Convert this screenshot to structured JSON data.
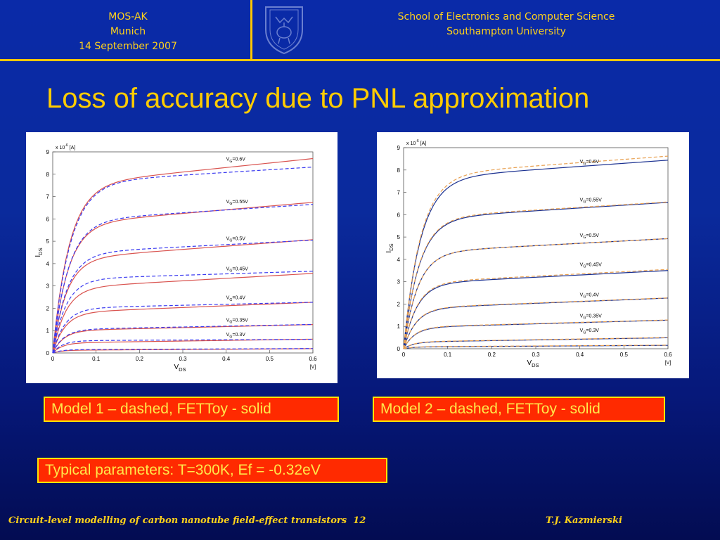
{
  "header": {
    "left": [
      "MOS-AK",
      "Munich",
      "14 September 2007"
    ],
    "right": [
      "School of Electronics and Computer Science",
      "Southampton University"
    ]
  },
  "title": "Loss of accuracy due to PNL approximation",
  "captions": {
    "model1": "Model 1 – dashed,   FETToy - solid",
    "model2": "Model 2 – dashed,   FETToy - solid",
    "params": "Typical parameters: T=300K, Ef = -0.32eV"
  },
  "footer": {
    "left": "Circuit-level modelling of carbon nanotube field-effect transistors",
    "page": "12",
    "right": "T.J. Kazmierski"
  },
  "colors": {
    "background": "#0a2aa8",
    "accent": "#ffcc00",
    "caption_bg": "#ff2a00",
    "fettoy_solid_model1": "#d9534f",
    "model1_dashed": "#3a3af0",
    "fettoy_solid_model2": "#1a3090",
    "model2_dashed": "#e8a050"
  },
  "chart_data": [
    {
      "type": "line",
      "xlabel": "V",
      "xlabel_sub": "DS",
      "xunit": "[V]",
      "ylabel": "I",
      "ylabel_sub": "DS",
      "yscale_label": "x 10",
      "yscale_exp": "-6",
      "yunit": "[A]",
      "xlim": [
        0,
        0.6
      ],
      "ylim": [
        0,
        9
      ],
      "xticks": [
        "0",
        "0.1",
        "0.2",
        "0.3",
        "0.4",
        "0.5",
        "0.6"
      ],
      "yticks": [
        "0",
        "1",
        "2",
        "3",
        "4",
        "5",
        "6",
        "7",
        "8",
        "9"
      ],
      "curve_labels": [
        {
          "text": "V",
          "sub": "G",
          "rest": "=0.6V",
          "x": 0.4,
          "y": 8.6
        },
        {
          "text": "V",
          "sub": "G",
          "rest": "=0.55V",
          "x": 0.4,
          "y": 6.7
        },
        {
          "text": "V",
          "sub": "G",
          "rest": "=0.5V",
          "x": 0.4,
          "y": 5.05
        },
        {
          "text": "V",
          "sub": "G",
          "rest": "=0.45V",
          "x": 0.4,
          "y": 3.7
        },
        {
          "text": "V",
          "sub": "G",
          "rest": "=0.4V",
          "x": 0.4,
          "y": 2.4
        },
        {
          "text": "V",
          "sub": "G",
          "rest": "=0.35V",
          "x": 0.4,
          "y": 1.4
        },
        {
          "text": "V",
          "sub": "G",
          "rest": "=0.3V",
          "x": 0.4,
          "y": 0.75
        }
      ],
      "series": [
        {
          "name": "FETToy - solid",
          "style": "solid",
          "color": "#d9534f",
          "curves": [
            {
              "isat": 7.5,
              "slope": 2.0,
              "vk": 0.038
            },
            {
              "isat": 5.75,
              "slope": 1.65,
              "vk": 0.035
            },
            {
              "isat": 4.2,
              "slope": 1.45,
              "vk": 0.032
            },
            {
              "isat": 2.9,
              "slope": 1.1,
              "vk": 0.03
            },
            {
              "isat": 1.8,
              "slope": 0.78,
              "vk": 0.028
            },
            {
              "isat": 1.0,
              "slope": 0.45,
              "vk": 0.025
            },
            {
              "isat": 0.45,
              "slope": 0.28,
              "vk": 0.022
            },
            {
              "isat": 0.12,
              "slope": 0.12,
              "vk": 0.02
            }
          ]
        },
        {
          "name": "Model 1 - dashed",
          "style": "dashed",
          "color": "#3a3af0",
          "curves": [
            {
              "isat": 7.6,
              "slope": 1.2,
              "vk": 0.04
            },
            {
              "isat": 5.9,
              "slope": 1.25,
              "vk": 0.036
            },
            {
              "isat": 4.45,
              "slope": 1.0,
              "vk": 0.033
            },
            {
              "isat": 3.3,
              "slope": 0.6,
              "vk": 0.03
            },
            {
              "isat": 2.0,
              "slope": 0.45,
              "vk": 0.028
            },
            {
              "isat": 1.05,
              "slope": 0.38,
              "vk": 0.025
            },
            {
              "isat": 0.55,
              "slope": 0.1,
              "vk": 0.022
            },
            {
              "isat": 0.15,
              "slope": 0.08,
              "vk": 0.02
            }
          ]
        }
      ]
    },
    {
      "type": "line",
      "xlabel": "V",
      "xlabel_sub": "DS",
      "xunit": "[V]",
      "ylabel": "I",
      "ylabel_sub": "DS",
      "yscale_label": "x 10",
      "yscale_exp": "-6",
      "yunit": "[A]",
      "xlim": [
        0,
        0.6
      ],
      "ylim": [
        0,
        9
      ],
      "xticks": [
        "0",
        "0.1",
        "0.2",
        "0.3",
        "0.4",
        "0.5",
        "0.6"
      ],
      "yticks": [
        "0",
        "1",
        "2",
        "3",
        "4",
        "5",
        "6",
        "7",
        "8",
        "9"
      ],
      "curve_labels": [
        {
          "text": "V",
          "sub": "G",
          "rest": "=0.6V",
          "x": 0.4,
          "y": 8.3
        },
        {
          "text": "V",
          "sub": "G",
          "rest": "=0.55V",
          "x": 0.4,
          "y": 6.6
        },
        {
          "text": "V",
          "sub": "G",
          "rest": "=0.5V",
          "x": 0.4,
          "y": 5.0
        },
        {
          "text": "V",
          "sub": "G",
          "rest": "=0.45V",
          "x": 0.4,
          "y": 3.7
        },
        {
          "text": "V",
          "sub": "G",
          "rest": "=0.4V",
          "x": 0.4,
          "y": 2.35
        },
        {
          "text": "V",
          "sub": "G",
          "rest": "=0.35V",
          "x": 0.4,
          "y": 1.4
        },
        {
          "text": "V",
          "sub": "G",
          "rest": "=0.3V",
          "x": 0.4,
          "y": 0.75
        }
      ],
      "series": [
        {
          "name": "FETToy - solid",
          "style": "solid",
          "color": "#1a3090",
          "curves": [
            {
              "isat": 7.6,
              "slope": 1.4,
              "vk": 0.038
            },
            {
              "isat": 5.8,
              "slope": 1.25,
              "vk": 0.035
            },
            {
              "isat": 4.3,
              "slope": 1.05,
              "vk": 0.032
            },
            {
              "isat": 2.9,
              "slope": 1.0,
              "vk": 0.03
            },
            {
              "isat": 1.8,
              "slope": 0.78,
              "vk": 0.028
            },
            {
              "isat": 0.95,
              "slope": 0.55,
              "vk": 0.025
            },
            {
              "isat": 0.3,
              "slope": 0.32,
              "vk": 0.022
            },
            {
              "isat": 0.08,
              "slope": 0.12,
              "vk": 0.02
            }
          ]
        },
        {
          "name": "Model 2 - dashed",
          "style": "dashed",
          "color": "#e8a050",
          "curves": [
            {
              "isat": 7.75,
              "slope": 1.45,
              "vk": 0.038
            },
            {
              "isat": 5.85,
              "slope": 1.2,
              "vk": 0.035
            },
            {
              "isat": 4.3,
              "slope": 1.05,
              "vk": 0.032
            },
            {
              "isat": 2.95,
              "slope": 1.0,
              "vk": 0.03
            },
            {
              "isat": 1.82,
              "slope": 0.76,
              "vk": 0.028
            },
            {
              "isat": 0.97,
              "slope": 0.53,
              "vk": 0.025
            },
            {
              "isat": 0.31,
              "slope": 0.32,
              "vk": 0.022
            },
            {
              "isat": 0.09,
              "slope": 0.12,
              "vk": 0.02
            }
          ]
        }
      ]
    }
  ]
}
